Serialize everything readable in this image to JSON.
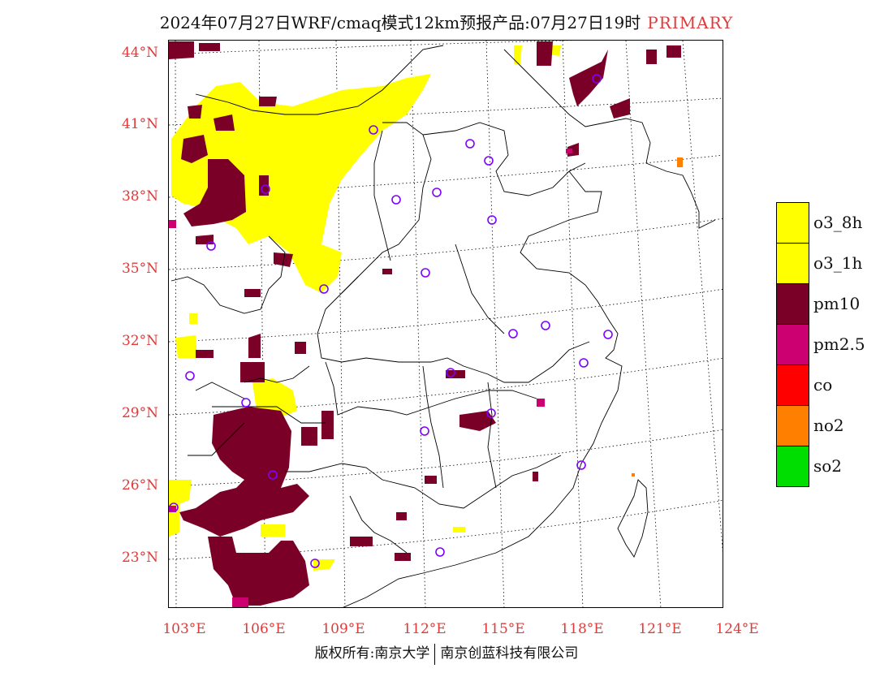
{
  "title": {
    "main": "2024年07月27日WRF/cmaq模式12km预报产品:07月27日19时",
    "tag": "PRIMARY"
  },
  "axes": {
    "lat_labels": [
      "44°N",
      "41°N",
      "38°N",
      "35°N",
      "32°N",
      "29°N",
      "26°N",
      "23°N"
    ],
    "lon_labels": [
      "103°E",
      "106°E",
      "109°E",
      "112°E",
      "115°E",
      "118°E",
      "121°E",
      "124°E"
    ]
  },
  "legend": [
    {
      "label": "o3_8h",
      "color": "#ffff00"
    },
    {
      "label": "o3_1h",
      "color": "#ffff00"
    },
    {
      "label": "pm10",
      "color": "#7a0028"
    },
    {
      "label": "pm2.5",
      "color": "#cc0070"
    },
    {
      "label": "co",
      "color": "#ff0000"
    },
    {
      "label": "no2",
      "color": "#ff7f00"
    },
    {
      "label": "so2",
      "color": "#00dd00"
    }
  ],
  "footer": {
    "left": "版权所有:南京大学",
    "right": "南京创蓝科技有限公司"
  }
}
